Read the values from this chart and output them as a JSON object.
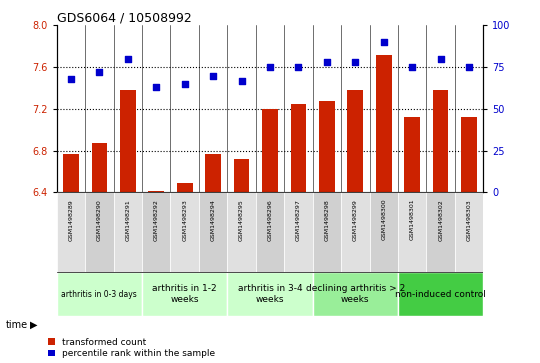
{
  "title": "GDS6064 / 10508992",
  "samples": [
    "GSM1498289",
    "GSM1498290",
    "GSM1498291",
    "GSM1498292",
    "GSM1498293",
    "GSM1498294",
    "GSM1498295",
    "GSM1498296",
    "GSM1498297",
    "GSM1498298",
    "GSM1498299",
    "GSM1498300",
    "GSM1498301",
    "GSM1498302",
    "GSM1498303"
  ],
  "bar_values": [
    6.77,
    6.87,
    7.38,
    6.41,
    6.49,
    6.77,
    6.72,
    7.2,
    7.25,
    7.28,
    7.38,
    7.72,
    7.12,
    7.38,
    7.12
  ],
  "dot_values": [
    68,
    72,
    80,
    63,
    65,
    70,
    67,
    75,
    75,
    78,
    78,
    90,
    75,
    80,
    75
  ],
  "ylim_left": [
    6.4,
    8.0
  ],
  "ylim_right": [
    0,
    100
  ],
  "yticks_left": [
    6.4,
    6.8,
    7.2,
    7.6,
    8.0
  ],
  "yticks_right": [
    0,
    25,
    50,
    75,
    100
  ],
  "bar_color": "#CC2200",
  "dot_color": "#0000CC",
  "groups": [
    {
      "label": "arthritis in 0-3 days",
      "start": 0,
      "end": 3,
      "color": "#CCFFCC",
      "small_font": true
    },
    {
      "label": "arthritis in 1-2\nweeks",
      "start": 3,
      "end": 6,
      "color": "#CCFFCC",
      "small_font": false
    },
    {
      "label": "arthritis in 3-4\nweeks",
      "start": 6,
      "end": 9,
      "color": "#CCFFCC",
      "small_font": false
    },
    {
      "label": "declining arthritis > 2\nweeks",
      "start": 9,
      "end": 12,
      "color": "#99EE99",
      "small_font": false
    },
    {
      "label": "non-induced control",
      "start": 12,
      "end": 15,
      "color": "#44CC44",
      "small_font": false
    }
  ],
  "legend_labels": [
    "transformed count",
    "percentile rank within the sample"
  ],
  "legend_colors": [
    "#CC2200",
    "#0000CC"
  ],
  "time_label": "time",
  "dotted_yvals": [
    6.8,
    7.2,
    7.6
  ],
  "col_colors": [
    "#E0E0E0",
    "#D0D0D0"
  ]
}
